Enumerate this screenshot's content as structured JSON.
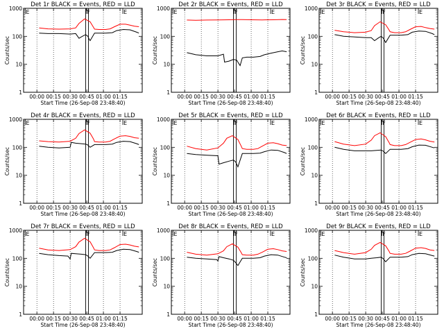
{
  "colors": {
    "events": "#000000",
    "lld": "#ff0000",
    "background": "#ffffff",
    "axes": "#000000"
  },
  "chart_data": [
    {
      "type": "line",
      "title": "Det 1r BLACK = Events, RED = LLD",
      "ylabel": "Counts/sec",
      "xlabel": "Start Time (26-Sep-08 23:48:40)",
      "yscale": "log",
      "ylim": [
        1,
        1000
      ],
      "y_ticks": [
        "1",
        "10",
        "100",
        "1000"
      ],
      "x_ticks": [
        "00:00",
        "00:15",
        "00:30",
        "00:45",
        "01:00",
        "01:15"
      ],
      "markers": [
        "E",
        "F",
        "E"
      ],
      "series": [
        {
          "name": "Events",
          "color": "#000000",
          "x_min": [
            2,
            10,
            20,
            30,
            35,
            38,
            41,
            43,
            44,
            46,
            47,
            48,
            52,
            56,
            62,
            68,
            72,
            78,
            84,
            90,
            92
          ],
          "y": [
            130,
            125,
            125,
            120,
            125,
            85,
            100,
            110,
            115,
            100,
            80,
            70,
            130,
            130,
            130,
            135,
            160,
            175,
            170,
            140,
            130
          ]
        },
        {
          "name": "LLD",
          "color": "#ff0000",
          "x_min": [
            2,
            10,
            20,
            30,
            35,
            38,
            43,
            48,
            51,
            52,
            56,
            62,
            66,
            70,
            75,
            80,
            84,
            88,
            92
          ],
          "y": [
            200,
            185,
            180,
            185,
            200,
            290,
            420,
            330,
            210,
            180,
            175,
            175,
            185,
            220,
            270,
            270,
            250,
            230,
            220
          ]
        }
      ]
    },
    {
      "type": "line",
      "title": "Det 2r BLACK = Events, RED = LLD",
      "ylabel": "Counts/sec",
      "xlabel": "Start Time (26-Sep-08 23:48:40)",
      "yscale": "log",
      "ylim": [
        1,
        1000
      ],
      "y_ticks": [
        "1",
        "10",
        "100",
        "1000"
      ],
      "x_ticks": [
        "00:00",
        "00:15",
        "00:30",
        "00:45",
        "01:00",
        "01:15"
      ],
      "markers": [
        "E",
        "F",
        "E"
      ],
      "series": [
        {
          "name": "Events",
          "color": "#000000",
          "x_min": [
            2,
            10,
            20,
            30,
            35,
            36,
            40,
            44,
            47,
            48,
            50,
            52,
            56,
            62,
            68,
            72,
            78,
            84,
            88,
            92
          ],
          "y": [
            26,
            22,
            20,
            20,
            23,
            12,
            13,
            15,
            14,
            12,
            9,
            17,
            18,
            18,
            19,
            22,
            25,
            28,
            30,
            28
          ]
        },
        {
          "name": "LLD",
          "color": "#ff0000",
          "x_min": [
            2,
            10,
            20,
            30,
            40,
            45,
            52,
            60,
            70,
            80,
            88,
            92
          ],
          "y": [
            380,
            375,
            380,
            385,
            390,
            395,
            395,
            390,
            385,
            390,
            400,
            395
          ]
        }
      ]
    },
    {
      "type": "line",
      "title": "Det 3r BLACK = Events, RED = LLD",
      "ylabel": "Counts/sec",
      "xlabel": "Start Time (26-Sep-08 23:48:40)",
      "yscale": "log",
      "ylim": [
        1,
        1000
      ],
      "y_ticks": [
        "1",
        "10",
        "100",
        "1000"
      ],
      "x_ticks": [
        "00:00",
        "00:15",
        "00:30",
        "00:45",
        "01:00",
        "01:15"
      ],
      "markers": [
        "E",
        "F",
        "E"
      ],
      "series": [
        {
          "name": "Events",
          "color": "#000000",
          "x_min": [
            2,
            10,
            20,
            30,
            35,
            38,
            41,
            43,
            44,
            46,
            48,
            52,
            56,
            62,
            68,
            72,
            78,
            84,
            90,
            92
          ],
          "y": [
            115,
            100,
            95,
            90,
            90,
            70,
            85,
            95,
            100,
            85,
            60,
            110,
            110,
            110,
            115,
            140,
            155,
            150,
            125,
            115
          ]
        },
        {
          "name": "LLD",
          "color": "#ff0000",
          "x_min": [
            2,
            10,
            20,
            30,
            35,
            38,
            43,
            48,
            51,
            52,
            56,
            62,
            66,
            70,
            75,
            80,
            84,
            88,
            92
          ],
          "y": [
            165,
            145,
            135,
            140,
            160,
            240,
            330,
            260,
            170,
            145,
            135,
            135,
            145,
            175,
            220,
            225,
            205,
            190,
            180
          ]
        }
      ]
    },
    {
      "type": "line",
      "title": "Det 4r BLACK = Events, RED = LLD",
      "ylabel": "Counts/sec",
      "xlabel": "Start Time (26-Sep-08 23:48:40)",
      "yscale": "log",
      "ylim": [
        1,
        1000
      ],
      "y_ticks": [
        "1",
        "10",
        "100",
        "1000"
      ],
      "x_ticks": [
        "00:00",
        "00:15",
        "00:30",
        "00:45",
        "01:00",
        "01:15"
      ],
      "markers": [
        "E",
        "F",
        "E"
      ],
      "series": [
        {
          "name": "Events",
          "color": "#000000",
          "x_min": [
            2,
            10,
            20,
            30,
            31,
            35,
            40,
            44,
            46,
            48,
            52,
            56,
            62,
            68,
            72,
            78,
            84,
            90,
            92
          ],
          "y": [
            110,
            100,
            95,
            100,
            150,
            140,
            135,
            130,
            120,
            100,
            125,
            125,
            125,
            130,
            150,
            165,
            160,
            135,
            125
          ]
        },
        {
          "name": "LLD",
          "color": "#ff0000",
          "x_min": [
            2,
            10,
            20,
            30,
            35,
            38,
            43,
            48,
            51,
            52,
            56,
            62,
            66,
            70,
            75,
            80,
            84,
            88,
            92
          ],
          "y": [
            170,
            160,
            155,
            165,
            210,
            310,
            420,
            320,
            200,
            160,
            155,
            155,
            165,
            200,
            250,
            260,
            245,
            220,
            210
          ]
        }
      ]
    },
    {
      "type": "line",
      "title": "Det 5r BLACK = Events, RED = LLD",
      "ylabel": "Counts/sec",
      "xlabel": "Start Time (26-Sep-08 23:48:40)",
      "yscale": "log",
      "ylim": [
        1,
        1000
      ],
      "y_ticks": [
        "1",
        "10",
        "100",
        "1000"
      ],
      "x_ticks": [
        "00:00",
        "00:15",
        "00:30",
        "00:45",
        "01:00",
        "01:15"
      ],
      "markers": [
        "E",
        "F",
        "E"
      ],
      "series": [
        {
          "name": "Events",
          "color": "#000000",
          "x_min": [
            2,
            10,
            20,
            30,
            31,
            35,
            40,
            44,
            46,
            48,
            52,
            56,
            62,
            68,
            72,
            78,
            84,
            90,
            92
          ],
          "y": [
            60,
            55,
            52,
            50,
            25,
            28,
            32,
            35,
            30,
            20,
            60,
            60,
            60,
            62,
            70,
            80,
            78,
            65,
            60
          ]
        },
        {
          "name": "LLD",
          "color": "#ff0000",
          "x_min": [
            2,
            10,
            20,
            30,
            35,
            38,
            43,
            48,
            51,
            52,
            56,
            62,
            66,
            70,
            75,
            80,
            84,
            88,
            92
          ],
          "y": [
            110,
            90,
            80,
            95,
            140,
            210,
            260,
            190,
            110,
            90,
            85,
            85,
            90,
            110,
            140,
            145,
            135,
            120,
            115
          ]
        }
      ]
    },
    {
      "type": "line",
      "title": "Det 6r BLACK = Events, RED = LLD",
      "ylabel": "Counts/sec",
      "xlabel": "Start Time (26-Sep-08 23:48:40)",
      "yscale": "log",
      "ylim": [
        1,
        1000
      ],
      "y_ticks": [
        "1",
        "10",
        "100",
        "1000"
      ],
      "x_ticks": [
        "00:00",
        "00:15",
        "00:30",
        "00:45",
        "01:00",
        "01:15"
      ],
      "markers": [
        "E",
        "F",
        "E"
      ],
      "series": [
        {
          "name": "Events",
          "color": "#000000",
          "x_min": [
            2,
            10,
            20,
            30,
            35,
            40,
            44,
            46,
            48,
            52,
            56,
            62,
            68,
            72,
            78,
            84,
            90,
            92
          ],
          "y": [
            100,
            85,
            75,
            75,
            75,
            78,
            80,
            72,
            60,
            85,
            85,
            85,
            90,
            105,
            120,
            118,
            100,
            95
          ]
        },
        {
          "name": "LLD",
          "color": "#ff0000",
          "x_min": [
            2,
            10,
            20,
            30,
            35,
            38,
            43,
            48,
            51,
            52,
            56,
            62,
            66,
            70,
            75,
            80,
            84,
            88,
            92
          ],
          "y": [
            160,
            130,
            115,
            130,
            180,
            260,
            330,
            240,
            150,
            125,
            115,
            115,
            125,
            150,
            190,
            200,
            185,
            165,
            155
          ]
        }
      ]
    },
    {
      "type": "line",
      "title": "Det 7r BLACK = Events, RED = LLD",
      "ylabel": "Counts/sec",
      "xlabel": "Start Time (26-Sep-08 23:48:40)",
      "yscale": "log",
      "ylim": [
        1,
        1000
      ],
      "y_ticks": [
        "1",
        "10",
        "100",
        "1000"
      ],
      "x_ticks": [
        "00:00",
        "00:15",
        "00:30",
        "00:45",
        "01:00",
        "01:15"
      ],
      "markers": [
        "E",
        "F",
        "E"
      ],
      "series": [
        {
          "name": "Events",
          "color": "#000000",
          "x_min": [
            2,
            10,
            20,
            28,
            30,
            31,
            35,
            40,
            44,
            46,
            48,
            52,
            56,
            62,
            68,
            72,
            78,
            84,
            90,
            92
          ],
          "y": [
            150,
            135,
            125,
            120,
            95,
            150,
            145,
            140,
            135,
            120,
            100,
            160,
            160,
            160,
            165,
            190,
            210,
            205,
            175,
            165
          ]
        },
        {
          "name": "LLD",
          "color": "#ff0000",
          "x_min": [
            2,
            10,
            20,
            30,
            35,
            38,
            43,
            48,
            51,
            52,
            56,
            62,
            66,
            70,
            75,
            80,
            84,
            88,
            92
          ],
          "y": [
            230,
            200,
            190,
            205,
            260,
            380,
            520,
            390,
            240,
            200,
            190,
            190,
            200,
            240,
            310,
            320,
            300,
            270,
            255
          ]
        }
      ]
    },
    {
      "type": "line",
      "title": "Det 8r BLACK = Events, RED = LLD",
      "ylabel": "Counts/sec",
      "xlabel": "Start Time (26-Sep-08 23:48:40)",
      "yscale": "log",
      "ylim": [
        1,
        1000
      ],
      "y_ticks": [
        "1",
        "10",
        "100",
        "1000"
      ],
      "x_ticks": [
        "00:00",
        "00:15",
        "00:30",
        "00:45",
        "01:00",
        "01:15"
      ],
      "markers": [
        "E",
        "F",
        "E"
      ],
      "series": [
        {
          "name": "Events",
          "color": "#000000",
          "x_min": [
            2,
            10,
            20,
            29,
            30,
            31,
            35,
            40,
            44,
            46,
            48,
            52,
            56,
            62,
            68,
            72,
            78,
            84,
            90,
            92
          ],
          "y": [
            110,
            100,
            95,
            90,
            80,
            115,
            105,
            95,
            85,
            70,
            55,
            100,
            100,
            100,
            105,
            120,
            135,
            130,
            110,
            105
          ]
        },
        {
          "name": "LLD",
          "color": "#ff0000",
          "x_min": [
            2,
            10,
            20,
            30,
            35,
            38,
            43,
            48,
            51,
            52,
            56,
            62,
            66,
            70,
            75,
            80,
            84,
            88,
            92
          ],
          "y": [
            165,
            140,
            130,
            145,
            185,
            260,
            330,
            250,
            160,
            135,
            130,
            130,
            140,
            165,
            210,
            220,
            205,
            185,
            175
          ]
        }
      ]
    },
    {
      "type": "line",
      "title": "Det 9r BLACK = Events, RED = LLD",
      "ylabel": "Counts/sec",
      "xlabel": "Start Time (26-Sep-08 23:48:40)",
      "yscale": "log",
      "ylim": [
        1,
        1000
      ],
      "y_ticks": [
        "1",
        "10",
        "100",
        "1000"
      ],
      "x_ticks": [
        "00:00",
        "00:15",
        "00:30",
        "00:45",
        "01:00",
        "01:15"
      ],
      "markers": [
        "E",
        "F",
        "E"
      ],
      "series": [
        {
          "name": "Events",
          "color": "#000000",
          "x_min": [
            2,
            10,
            20,
            30,
            35,
            40,
            44,
            46,
            48,
            52,
            56,
            62,
            68,
            72,
            78,
            84,
            90,
            92
          ],
          "y": [
            130,
            110,
            95,
            95,
            100,
            105,
            110,
            95,
            75,
            110,
            110,
            110,
            115,
            135,
            150,
            145,
            125,
            120
          ]
        },
        {
          "name": "LLD",
          "color": "#ff0000",
          "x_min": [
            2,
            10,
            20,
            30,
            35,
            38,
            43,
            48,
            51,
            52,
            56,
            62,
            66,
            70,
            75,
            80,
            84,
            88,
            92
          ],
          "y": [
            190,
            160,
            140,
            160,
            210,
            290,
            370,
            280,
            180,
            150,
            140,
            140,
            150,
            180,
            230,
            240,
            225,
            200,
            190
          ]
        }
      ]
    }
  ]
}
